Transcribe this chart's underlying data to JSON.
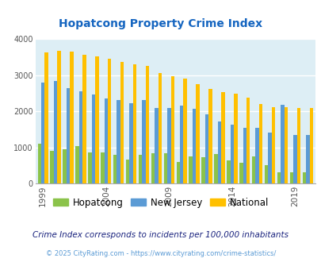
{
  "title": "Hopatcong Property Crime Index",
  "years": [
    1999,
    2000,
    2001,
    2002,
    2003,
    2004,
    2005,
    2006,
    2007,
    2008,
    2009,
    2010,
    2011,
    2012,
    2013,
    2014,
    2015,
    2016,
    2017,
    2018,
    2019,
    2020
  ],
  "hopatcong": [
    1100,
    900,
    950,
    1030,
    860,
    870,
    800,
    660,
    800,
    830,
    840,
    600,
    750,
    730,
    820,
    650,
    570,
    740,
    510,
    300,
    310,
    310
  ],
  "new_jersey": [
    2790,
    2840,
    2650,
    2560,
    2460,
    2360,
    2310,
    2220,
    2310,
    2100,
    2100,
    2160,
    2080,
    1910,
    1720,
    1630,
    1550,
    1550,
    1420,
    2190,
    1340,
    1340
  ],
  "national": [
    3640,
    3680,
    3660,
    3560,
    3520,
    3450,
    3370,
    3310,
    3260,
    3060,
    2970,
    2920,
    2760,
    2620,
    2530,
    2480,
    2390,
    2200,
    2110,
    2110,
    2100,
    2100
  ],
  "hopatcong_color": "#8bc34a",
  "nj_color": "#5b9bd5",
  "national_color": "#ffc000",
  "bg_color": "#ddeef5",
  "title_color": "#1565c0",
  "ylabel_max": 4000,
  "footnote1": "Crime Index corresponds to incidents per 100,000 inhabitants",
  "footnote2": "© 2025 CityRating.com - https://www.cityrating.com/crime-statistics/",
  "xtick_years": [
    1999,
    2004,
    2009,
    2014,
    2019
  ],
  "legend_labels": [
    "Hopatcong",
    "New Jersey",
    "National"
  ],
  "footnote1_color": "#1a237e",
  "footnote2_color": "#5b9bd5"
}
